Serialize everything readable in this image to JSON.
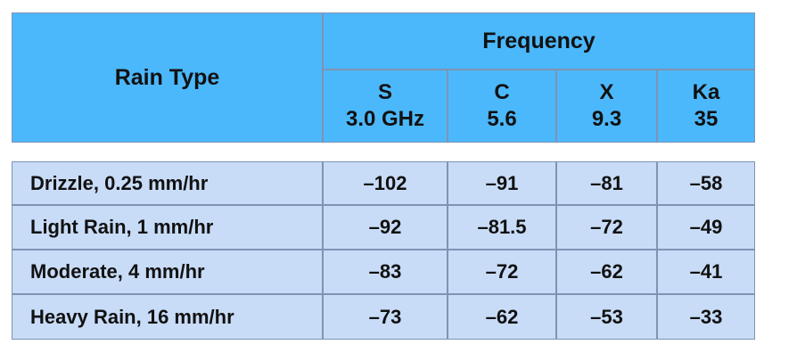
{
  "header": {
    "row_label": "Rain Type",
    "group": "Frequency",
    "bands": [
      {
        "name": "S",
        "freq": "3.0 GHz"
      },
      {
        "name": "C",
        "freq": "5.6"
      },
      {
        "name": "X",
        "freq": "9.3"
      },
      {
        "name": "Ka",
        "freq": "35"
      }
    ]
  },
  "table": {
    "rows": [
      [
        "Drizzle, 0.25 mm/hr",
        "–102",
        "–91",
        "–81",
        "–58"
      ],
      [
        "Light Rain, 1 mm/hr",
        "–92",
        "–81.5",
        "–72",
        "–49"
      ],
      [
        "Moderate, 4 mm/hr",
        "–83",
        "–72",
        "–62",
        "–41"
      ],
      [
        "Heavy Rain, 16 mm/hr",
        "–73",
        "–62",
        "–53",
        "–33"
      ]
    ]
  }
}
